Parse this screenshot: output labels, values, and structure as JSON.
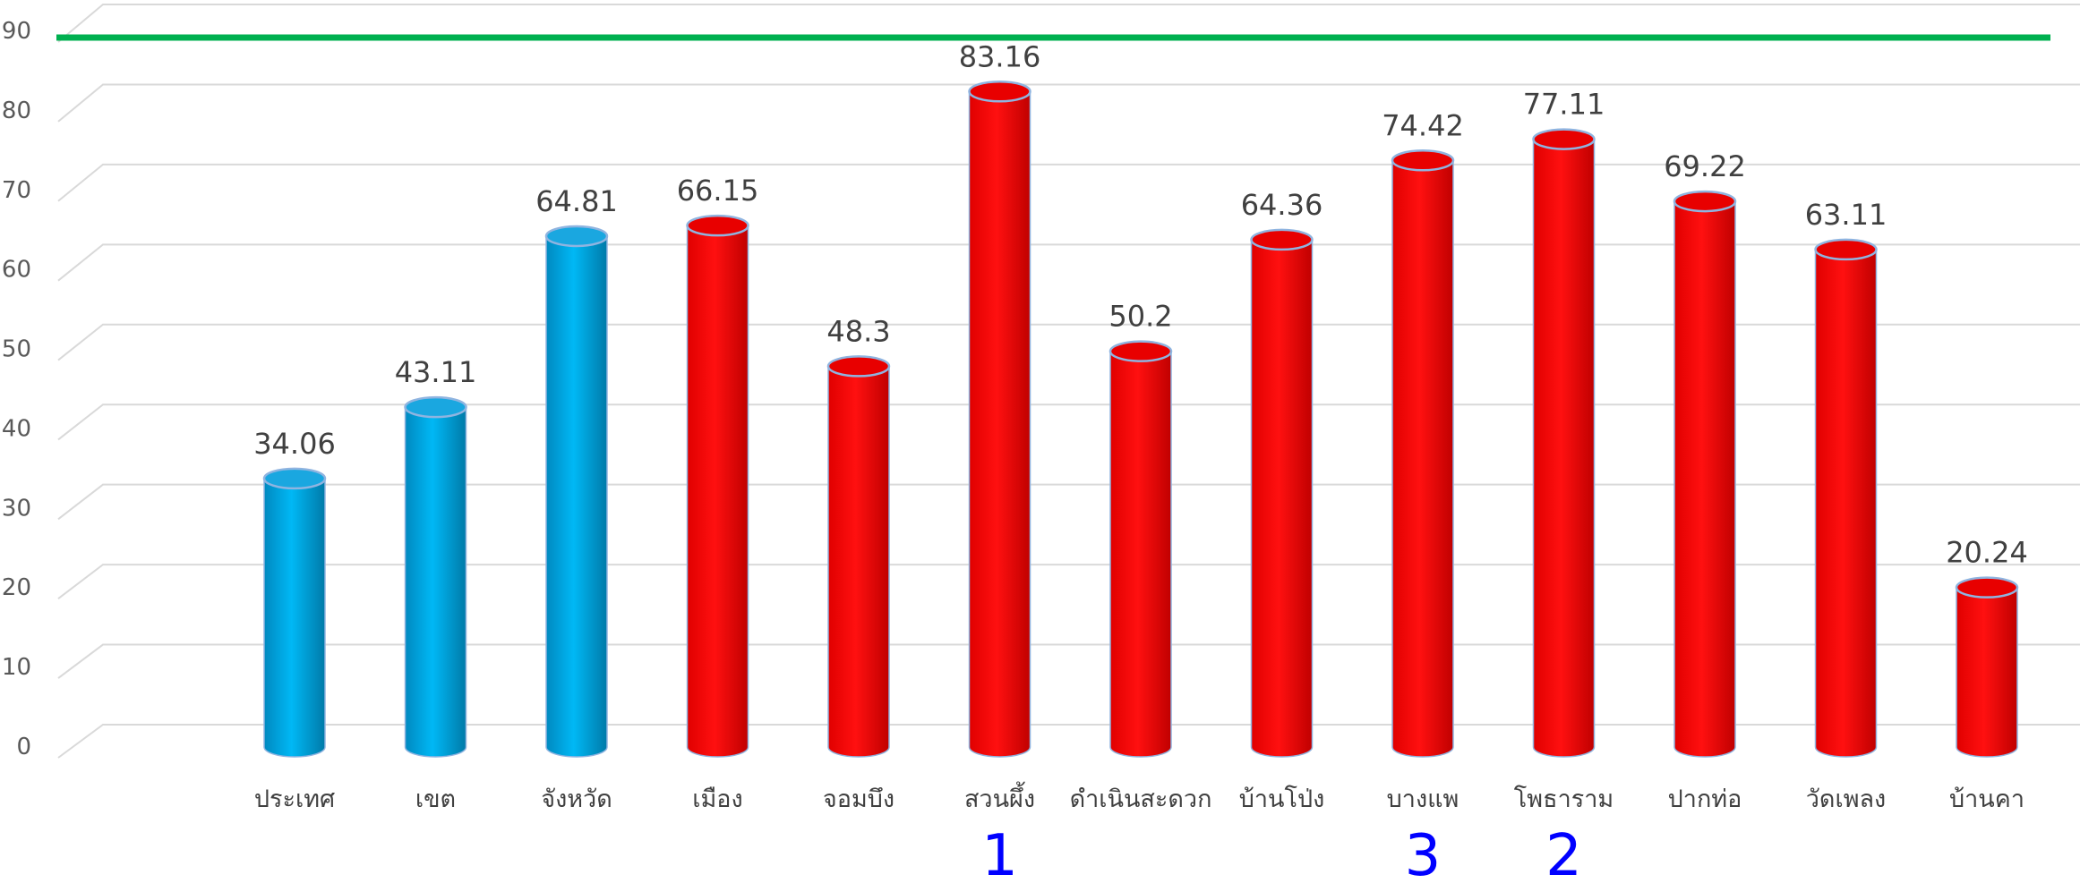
{
  "chart_data": {
    "type": "bar",
    "style": "3d-cylinder",
    "categories": [
      "ประเทศ",
      "เขต",
      "จังหวัด",
      "เมือง",
      "จอมบึง",
      "สวนผึ้ง",
      "ดำเนินสะดวก",
      "บ้านโป่ง",
      "บางแพ",
      "โพธาราม",
      "ปากท่อ",
      "วัดเพลง",
      "บ้านคา"
    ],
    "values": [
      34.06,
      43.11,
      64.81,
      66.15,
      48.3,
      83.16,
      50.2,
      64.36,
      74.42,
      77.11,
      69.22,
      63.11,
      20.24
    ],
    "value_labels": [
      "34.06",
      "43.11",
      "64.81",
      "66.15",
      "48.3",
      "83.16",
      "50.2",
      "64.36",
      "74.42",
      "77.11",
      "69.22",
      "63.11",
      "20.24"
    ],
    "bar_colors": [
      "#00b0f0",
      "#00b0f0",
      "#00b0f0",
      "#ff0000",
      "#ff0000",
      "#ff0000",
      "#ff0000",
      "#ff0000",
      "#ff0000",
      "#ff0000",
      "#ff0000",
      "#ff0000",
      "#ff0000"
    ],
    "ylim": [
      0,
      90
    ],
    "yticks": [
      "0",
      "10",
      "20",
      "30",
      "40",
      "50",
      "60",
      "70",
      "80",
      "90"
    ],
    "grid": true,
    "target_line": {
      "value": 90,
      "color": "#00b050"
    },
    "rank_annotations": [
      {
        "category": "สวนผึ้ง",
        "label": "1"
      },
      {
        "category": "บางแพ",
        "label": "3"
      },
      {
        "category": "โพธาราม",
        "label": "2"
      }
    ],
    "title": "",
    "xlabel": "",
    "ylabel": ""
  }
}
